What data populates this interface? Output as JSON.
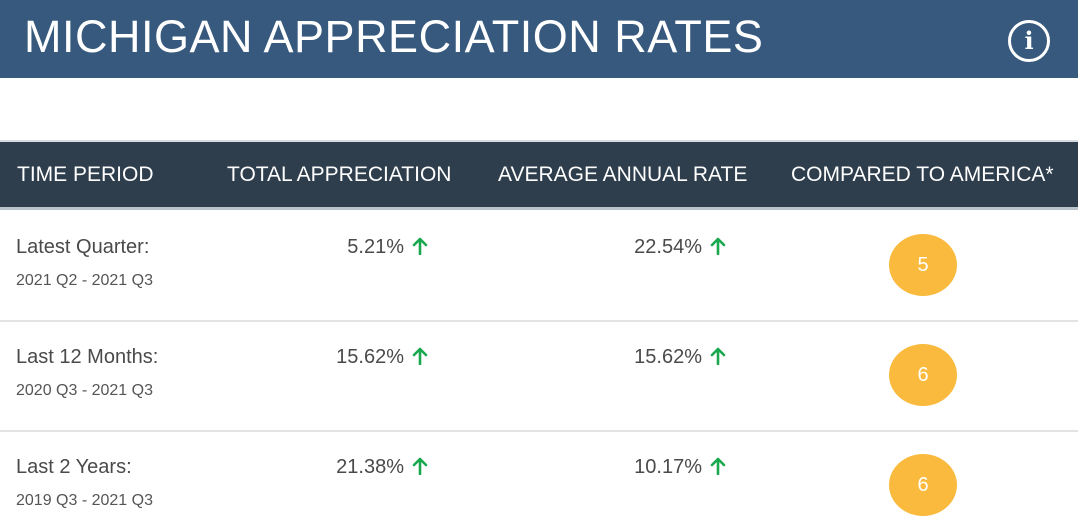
{
  "header": {
    "title": "MICHIGAN APPRECIATION RATES",
    "info_icon": "info-circle-icon",
    "info_glyph": "i",
    "background": "#36597d"
  },
  "table": {
    "columns": [
      "TIME PERIOD",
      "TOTAL APPRECIATION",
      "AVERAGE ANNUAL RATE",
      "COMPARED TO AMERICA*"
    ],
    "header_background": "#2e3e4d",
    "rows": [
      {
        "period": "Latest Quarter:",
        "range": "2021 Q2 - 2021 Q3",
        "total": "5.21%",
        "annual": "22.54%",
        "rank": "5"
      },
      {
        "period": "Last 12 Months:",
        "range": "2020 Q3 - 2021 Q3",
        "total": "15.62%",
        "annual": "15.62%",
        "rank": "6"
      },
      {
        "period": "Last 2 Years:",
        "range": "2019 Q3 - 2021 Q3",
        "total": "21.38%",
        "annual": "10.17%",
        "rank": "6"
      }
    ],
    "trend_icon": "arrow-up-icon",
    "trend_color": "#1aa84f",
    "rank_color": "#f9ba3d"
  }
}
